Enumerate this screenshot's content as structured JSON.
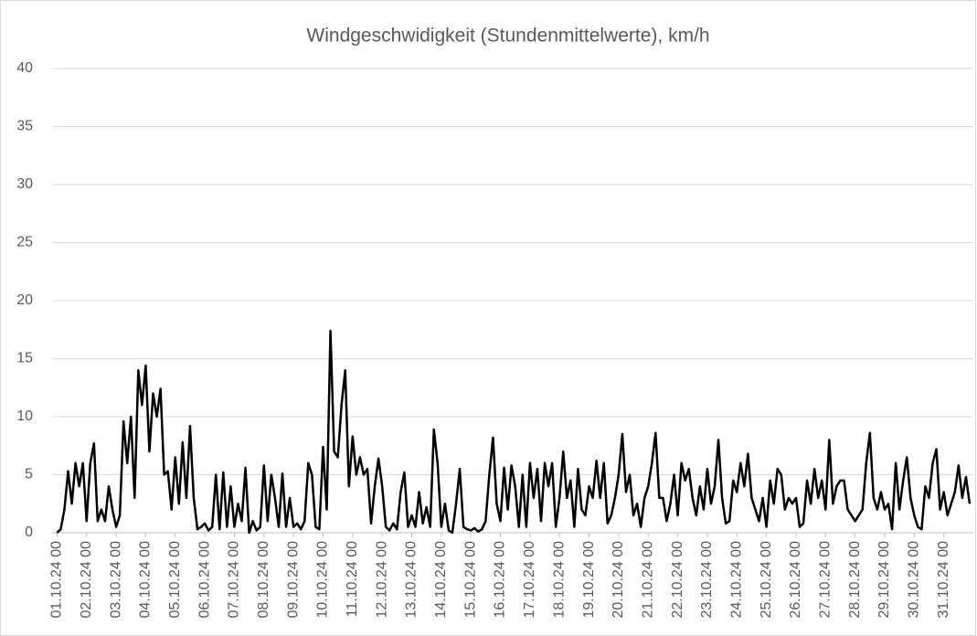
{
  "chart_data": {
    "type": "line",
    "title": "Windgeschwidigkeit (Stundenmittelwerte), km/h",
    "series": [
      {
        "color": "#000000",
        "x": [
          0,
          3,
          6,
          9,
          12,
          15,
          18,
          21,
          24,
          27,
          30,
          33,
          36,
          39,
          42,
          45,
          48,
          51,
          54,
          57,
          60,
          63,
          66,
          69,
          72,
          75,
          78,
          81,
          84,
          87,
          90,
          93,
          96,
          99,
          102,
          105,
          108,
          111,
          114,
          117,
          120,
          123,
          126,
          129,
          132,
          135,
          138,
          141,
          144,
          147,
          150,
          153,
          156,
          159,
          162,
          165,
          168,
          171,
          174,
          177,
          180,
          183,
          186,
          189,
          192,
          195,
          198,
          201,
          204,
          207,
          210,
          213,
          216,
          219,
          222,
          225,
          228,
          231,
          234,
          237,
          240,
          243,
          246,
          249,
          252,
          255,
          258,
          261,
          264,
          267,
          270,
          273,
          276,
          279,
          282,
          285,
          288,
          291,
          294,
          297,
          300,
          303,
          306,
          309,
          312,
          315,
          318,
          321,
          324,
          327,
          330,
          333,
          336,
          339,
          342,
          345,
          348,
          351,
          354,
          357,
          360,
          363,
          366,
          369,
          372,
          375,
          378,
          381,
          384,
          387,
          390,
          393,
          396,
          399,
          402,
          405,
          408,
          411,
          414,
          417,
          420,
          423,
          426,
          429,
          432,
          435,
          438,
          441,
          444,
          447,
          450,
          453,
          456,
          459,
          462,
          465,
          468,
          471,
          474,
          477,
          480,
          483,
          486,
          489,
          492,
          495,
          498,
          501,
          504,
          507,
          510,
          513,
          516,
          519,
          522,
          525,
          528,
          531,
          534,
          537,
          540,
          543,
          546,
          549,
          552,
          555,
          558,
          561,
          564,
          567,
          570,
          573,
          576,
          579,
          582,
          585,
          588,
          591,
          594,
          597,
          600,
          603,
          606,
          609,
          612,
          615,
          618,
          621,
          624,
          627,
          630,
          633,
          636,
          639,
          642,
          645,
          648,
          651,
          654,
          657,
          660,
          663,
          666,
          669,
          672,
          675,
          678,
          681,
          684,
          687,
          690,
          693,
          696,
          699,
          702,
          705,
          708,
          711,
          714,
          717,
          720,
          723,
          726,
          729,
          732,
          735,
          738,
          741
        ],
        "values": [
          0,
          0.3,
          2,
          5.3,
          2.5,
          6,
          4,
          6,
          1,
          6,
          7.7,
          1,
          2,
          1,
          4,
          2,
          0.5,
          1.5,
          9.6,
          6,
          10,
          3,
          14,
          11,
          14.4,
          7,
          12,
          10,
          12.4,
          5,
          5.3,
          2,
          6.5,
          2.5,
          7.8,
          3,
          9.2,
          3,
          0.3,
          0.5,
          0.8,
          0.2,
          0.5,
          5,
          0.3,
          5.2,
          0.5,
          4,
          0.5,
          2.5,
          1,
          5.6,
          0,
          1,
          0.2,
          0.5,
          5.8,
          1,
          5,
          3,
          0.5,
          5.1,
          0.5,
          3,
          0.5,
          0.8,
          0.3,
          1,
          6,
          5,
          0.5,
          0.3,
          7.4,
          2,
          17.4,
          7,
          6.5,
          11,
          14,
          4,
          8.3,
          5,
          6.5,
          5,
          5.5,
          0.8,
          4,
          6.4,
          4,
          0.5,
          0.2,
          0.8,
          0.3,
          3.5,
          5.2,
          0.5,
          1.5,
          0.5,
          3.5,
          0.8,
          2.2,
          0.5,
          8.9,
          6,
          0.5,
          2.5,
          0.2,
          0,
          2.5,
          5.5,
          0.5,
          0.3,
          0.2,
          0.4,
          0.1,
          0.3,
          1,
          5,
          8.2,
          2.5,
          1,
          5.6,
          2,
          5.8,
          4,
          0.5,
          5,
          0.5,
          6,
          3,
          5.5,
          1,
          6,
          4,
          6,
          0.5,
          3,
          7,
          3,
          4.5,
          0.5,
          5.5,
          2,
          1.5,
          4,
          3,
          6.2,
          3,
          6,
          0.8,
          1.5,
          3,
          5,
          8.5,
          3.5,
          5,
          1.5,
          2.5,
          0.5,
          3,
          4,
          6,
          8.6,
          3,
          3,
          1,
          2.5,
          5,
          1.5,
          6,
          4.5,
          5.5,
          3,
          1.5,
          4,
          2,
          5.5,
          2.5,
          4,
          8,
          3,
          0.8,
          1,
          4.5,
          3.5,
          6,
          4,
          6.8,
          3,
          2,
          1,
          3,
          0.5,
          4.5,
          2.5,
          5.5,
          5,
          2,
          3,
          2.5,
          3,
          0.5,
          0.8,
          4.5,
          2.5,
          5.5,
          3,
          4.5,
          2,
          8,
          2.5,
          4,
          4.5,
          4.5,
          2,
          1.5,
          1,
          1.5,
          2,
          6,
          8.6,
          3,
          2,
          3.5,
          2,
          2.5,
          0.3,
          6,
          2,
          4.5,
          6.5,
          3,
          1.5,
          0.5,
          0.3,
          4,
          3,
          6,
          7.2,
          2,
          3.5,
          1.5,
          2.5,
          3.5,
          5.8,
          3,
          4.8,
          2.5
        ]
      }
    ],
    "xlim": [
      -4,
      744
    ],
    "xticks": [
      {
        "value": 0,
        "label": "01.10.24 00"
      },
      {
        "value": 24,
        "label": "02.10.24 00"
      },
      {
        "value": 48,
        "label": "03.10.24 00"
      },
      {
        "value": 72,
        "label": "04.10.24 00"
      },
      {
        "value": 96,
        "label": "05.10.24 00"
      },
      {
        "value": 120,
        "label": "06.10.24 00"
      },
      {
        "value": 144,
        "label": "07.10.24 00"
      },
      {
        "value": 168,
        "label": "08.10.24 00"
      },
      {
        "value": 192,
        "label": "09.10.24 00"
      },
      {
        "value": 216,
        "label": "10.10.24 00"
      },
      {
        "value": 240,
        "label": "11.10.24 00"
      },
      {
        "value": 264,
        "label": "12.10.24 00"
      },
      {
        "value": 288,
        "label": "13.10.24 00"
      },
      {
        "value": 312,
        "label": "14.10.24 00"
      },
      {
        "value": 336,
        "label": "15.10.24 00"
      },
      {
        "value": 360,
        "label": "16.10.24 00"
      },
      {
        "value": 384,
        "label": "17.10.24 00"
      },
      {
        "value": 408,
        "label": "18.10.24 00"
      },
      {
        "value": 432,
        "label": "19.10.24 00"
      },
      {
        "value": 456,
        "label": "20.10.24 00"
      },
      {
        "value": 480,
        "label": "21.10.24 00"
      },
      {
        "value": 504,
        "label": "22.10.24 00"
      },
      {
        "value": 528,
        "label": "23.10.24 00"
      },
      {
        "value": 552,
        "label": "24.10.24 00"
      },
      {
        "value": 576,
        "label": "25.10.24 00"
      },
      {
        "value": 600,
        "label": "26.10.24 00"
      },
      {
        "value": 624,
        "label": "27.10.24 00"
      },
      {
        "value": 648,
        "label": "28.10.24 00"
      },
      {
        "value": 672,
        "label": "29.10.24 00"
      },
      {
        "value": 696,
        "label": "30.10.24 00"
      },
      {
        "value": 720,
        "label": "31.10.24 00"
      }
    ],
    "ylim": [
      0,
      40
    ],
    "yticks": [
      0,
      5,
      10,
      15,
      20,
      25,
      30,
      35,
      40
    ],
    "grid": true
  }
}
